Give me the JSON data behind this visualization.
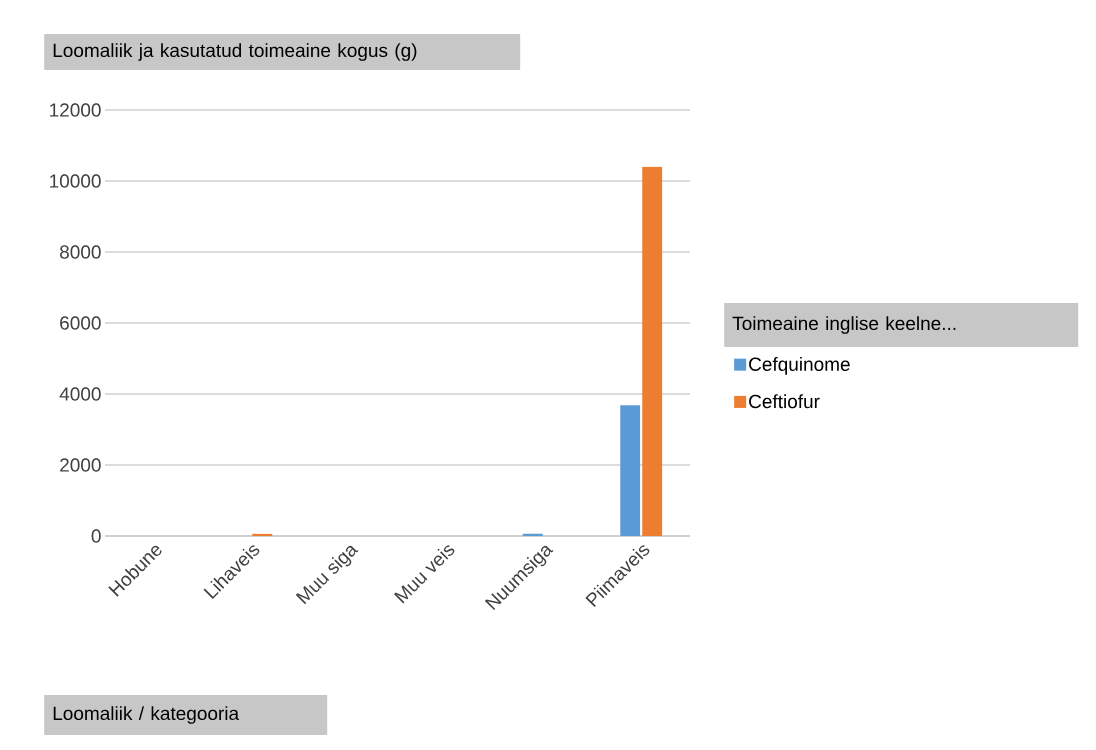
{
  "chart_data": {
    "type": "bar",
    "title": "Loomaliik ja kasutatud toimeaine kogus (g)",
    "annotations": [
      "Loomaliik / kategooria"
    ],
    "legend_title": "Toimeaine inglise keelne...",
    "categories": [
      "Hobune",
      "Lihaveis",
      "Muu siga",
      "Muu veis",
      "Nuumsiga",
      "Piimaveis"
    ],
    "series": [
      {
        "name": "Cefquinome",
        "color": "#5b9bd5",
        "values": [
          null,
          null,
          null,
          null,
          60,
          3680
        ]
      },
      {
        "name": "Ceftiofur",
        "color": "#ed7d31",
        "values": [
          null,
          60,
          null,
          null,
          null,
          10400
        ]
      }
    ],
    "ylim": [
      0,
      12000
    ],
    "yticks": [
      0,
      2000,
      4000,
      6000,
      8000,
      10000,
      12000
    ],
    "grid": "y",
    "legend": "right"
  }
}
